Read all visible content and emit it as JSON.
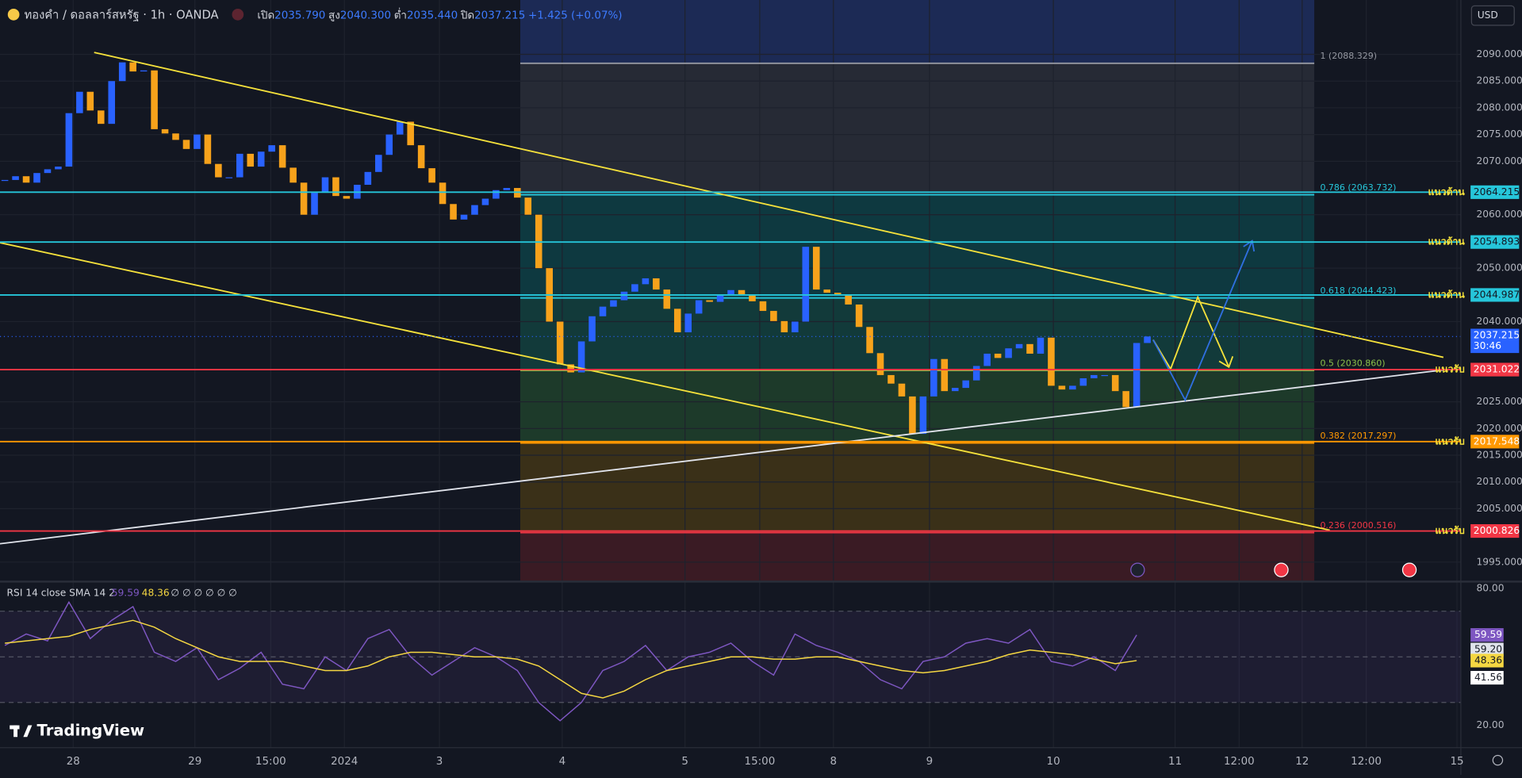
{
  "header": {
    "symbol": "ทองคำ / ดอลลาร์สหรัฐ · 1h · OANDA",
    "open_label": "เปิด",
    "open": "2035.790",
    "high_label": "สูง",
    "high": "2040.300",
    "low_label": "ต่ำ",
    "low": "2035.440",
    "close_label": "ปิด",
    "close": "2037.215",
    "change": "+1.425 (+0.07%)",
    "currency": "USD"
  },
  "price": {
    "ylim": [
      1991.54,
      2100.17
    ],
    "up_color": "#2962ff",
    "down_color": "#f7a21b",
    "closes": [
      2066.5,
      2067.2,
      2066.0,
      2067.8,
      2068.5,
      2069,
      2079,
      2083,
      2079.5,
      2077,
      2085,
      2088.5,
      2086.8,
      2087,
      2076,
      2075.2,
      2074,
      2072.3,
      2075,
      2069.5,
      2067,
      2067,
      2071.4,
      2069,
      2071.8,
      2073,
      2068.8,
      2066,
      2060,
      2064.1,
      2067,
      2063.5,
      2063,
      2065.6,
      2068,
      2071.2,
      2075,
      2077.4,
      2073,
      2068.7,
      2066,
      2062,
      2059.1,
      2060,
      2061.8,
      2063,
      2064.6,
      2065,
      2063.2,
      2060,
      2050,
      2040,
      2032,
      2030.5,
      2036.3,
      2041,
      2042.8,
      2044,
      2045.6,
      2047,
      2048.1,
      2046,
      2042.4,
      2038,
      2041.5,
      2044,
      2043.7,
      2045,
      2045.9,
      2045,
      2043.8,
      2042,
      2040.1,
      2038,
      2040,
      2054,
      2046,
      2045.4,
      2045,
      2043.2,
      2039,
      2034.1,
      2030,
      2028.4,
      2026,
      2019,
      2026,
      2033,
      2027,
      2027.6,
      2029,
      2031.7,
      2034,
      2033.2,
      2035,
      2035.8,
      2034,
      2037,
      2028,
      2027.3,
      2028,
      2029.4,
      2030,
      2030,
      2027,
      2024,
      2036,
      2037.215
    ],
    "yticks": [
      {
        "value": 2090,
        "label": "2090.000"
      },
      {
        "value": 2085,
        "label": "2085.000"
      },
      {
        "value": 2080,
        "label": "2080.000"
      },
      {
        "value": 2075,
        "label": "2075.000"
      },
      {
        "value": 2070,
        "label": "2070.000"
      },
      {
        "value": 2060,
        "label": "2060.000"
      },
      {
        "value": 2050,
        "label": "2050.000"
      },
      {
        "value": 2040,
        "label": "2040.000"
      },
      {
        "value": 2025,
        "label": "2025.000"
      },
      {
        "value": 2020,
        "label": "2020.000"
      },
      {
        "value": 2015,
        "label": "2015.000"
      },
      {
        "value": 2010,
        "label": "2010.000"
      },
      {
        "value": 2005,
        "label": "2005.000"
      },
      {
        "value": 1995,
        "label": "1995.000"
      }
    ],
    "current": 2037.215,
    "countdown": "30:46"
  },
  "time_ticks": [
    {
      "value": 6.4,
      "label": "28"
    },
    {
      "value": 17.8,
      "label": "29"
    },
    {
      "value": 24.9,
      "label": "15:00"
    },
    {
      "value": 31.8,
      "label": "2024"
    },
    {
      "value": 40.7,
      "label": "3"
    },
    {
      "value": 52.2,
      "label": "4"
    },
    {
      "value": 63.7,
      "label": "5"
    },
    {
      "value": 70.7,
      "label": "15:00"
    },
    {
      "value": 77.6,
      "label": "8"
    },
    {
      "value": 86.6,
      "label": "9"
    },
    {
      "value": 98.2,
      "label": "10"
    },
    {
      "value": 109.6,
      "label": "11"
    },
    {
      "value": 115.6,
      "label": "12:00"
    },
    {
      "value": 121.5,
      "label": "12"
    },
    {
      "value": 127.5,
      "label": "12:00"
    },
    {
      "value": 136,
      "label": "15"
    }
  ],
  "levels": [
    {
      "value": 2064.215,
      "label": "แนวต้าน",
      "color": "#26c6da"
    },
    {
      "value": 2054.893,
      "label": "แนวต้าน",
      "color": "#26c6da"
    },
    {
      "value": 2044.987,
      "label": "แนวต้าน",
      "color": "#26c6da"
    },
    {
      "value": 2031.022,
      "label": "แนวรับ",
      "color": "#f23645"
    },
    {
      "value": 2017.548,
      "label": "แนวรับ",
      "color": "#ff9800"
    },
    {
      "value": 2000.826,
      "label": "แนวรับ",
      "color": "#f23645"
    }
  ],
  "fib": {
    "top_fill": "#1c2a55",
    "levels": [
      {
        "value": 2088.329,
        "label": "1 (2088.329)",
        "color": "#9598a1",
        "fill": "#262a35"
      },
      {
        "value": 2063.732,
        "label": "0.786 (2063.732)",
        "color": "#26c6da",
        "fill": "#0e3940"
      },
      {
        "value": 2044.423,
        "label": "0.618 (2044.423)",
        "color": "#26c6da",
        "fill": "#123a3a"
      },
      {
        "value": 2030.86,
        "label": "0.5 (2030.860)",
        "color": "#8bc34a",
        "fill": "#1d3a2a"
      },
      {
        "value": 2017.297,
        "label": "0.382 (2017.297)",
        "color": "#ff9800",
        "fill": "#3a3018"
      },
      {
        "value": 2000.516,
        "label": "0.236 (2000.516)",
        "color": "#f23645",
        "fill": "#3a1b24"
      }
    ]
  },
  "rsi": {
    "title": "RSI 14 close SMA 14 2",
    "nulls": "∅ ∅ ∅ ∅ ∅ ∅",
    "ylim": [
      10.21,
      82.55
    ],
    "bands": [
      70,
      50,
      30
    ],
    "ticks": [
      {
        "value": 80,
        "label": "80.00"
      },
      {
        "value": 20,
        "label": "20.00"
      }
    ],
    "color": "#7e57c2",
    "sma_color": "#f5d742",
    "values": [
      55,
      60,
      57,
      74,
      58,
      66,
      72,
      52,
      48,
      54,
      40,
      45,
      52,
      38,
      36,
      50,
      44,
      58,
      62,
      50,
      42,
      48,
      54,
      50,
      44,
      30,
      22,
      30,
      44,
      48,
      55,
      44,
      50,
      52,
      56,
      48,
      42,
      60,
      55,
      52,
      48,
      40,
      36,
      48,
      50,
      56,
      58,
      56,
      62,
      48,
      46,
      50,
      44,
      59.59
    ],
    "sma": [
      56,
      57,
      58,
      59,
      62,
      64,
      66,
      63,
      58,
      54,
      50,
      48,
      48,
      48,
      46,
      44,
      44,
      46,
      50,
      52,
      52,
      51,
      50,
      50,
      49,
      46,
      40,
      34,
      32,
      35,
      40,
      44,
      46,
      48,
      50,
      50,
      49,
      49,
      50,
      50,
      48,
      46,
      44,
      43,
      44,
      46,
      48,
      51,
      53,
      52,
      51,
      49,
      47,
      48.36
    ],
    "extra_labels": [
      "59.20",
      "41.56"
    ]
  },
  "brand": "TradingView"
}
